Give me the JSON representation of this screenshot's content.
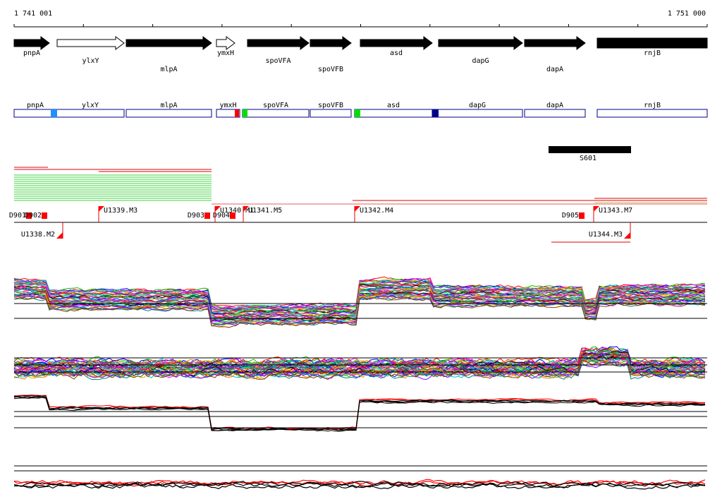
{
  "ruler": {
    "start": "1 741 001",
    "end": "1 751 000"
  },
  "genes": [
    {
      "label": "pnpA"
    },
    {
      "label": "ylxY"
    },
    {
      "label": "mlpA"
    },
    {
      "label": "ymxH"
    },
    {
      "label": "spoVFA"
    },
    {
      "label": "spoVFB"
    },
    {
      "label": "asd"
    },
    {
      "label": "dapG"
    },
    {
      "label": "dapA"
    },
    {
      "label": "rnjB"
    }
  ],
  "gene_boxes": [
    {
      "label": "pnpA"
    },
    {
      "label": "ylxY"
    },
    {
      "label": "mlpA"
    },
    {
      "label": "ymxH"
    },
    {
      "label": "spoVFA"
    },
    {
      "label": "spoVFB"
    },
    {
      "label": "asd"
    },
    {
      "label": "dapG"
    },
    {
      "label": "dapA"
    },
    {
      "label": "rnjB"
    }
  ],
  "region": {
    "label": "S601"
  },
  "features": [
    {
      "label": "D901"
    },
    {
      "label": "D902"
    },
    {
      "label": "U1339.M3"
    },
    {
      "label": "D903"
    },
    {
      "label": "D904"
    },
    {
      "label": "U1340.M1"
    },
    {
      "label": "U1341.M5"
    },
    {
      "label": "U1342.M4"
    },
    {
      "label": "D905"
    },
    {
      "label": "U1343.M7"
    },
    {
      "label": "U1338.M2"
    },
    {
      "label": "U1344.M3"
    }
  ]
}
